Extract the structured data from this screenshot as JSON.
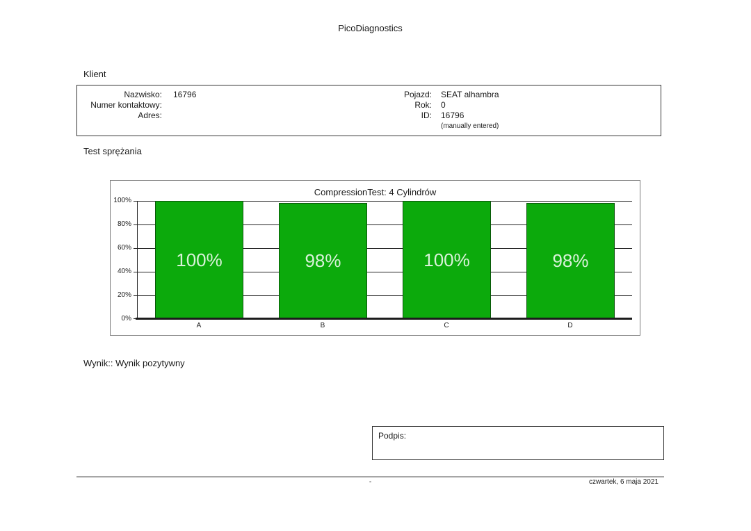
{
  "page": {
    "title": "PicoDiagnostics",
    "footer": {
      "dash": "-",
      "date": "czwartek, 6 maja 2021"
    }
  },
  "client": {
    "heading": "Klient",
    "left_fields": [
      {
        "label": "Nazwisko:",
        "value": "16796"
      },
      {
        "label": "Numer kontaktowy:",
        "value": ""
      },
      {
        "label": "Adres:",
        "value": ""
      }
    ],
    "right_fields": [
      {
        "label": "Pojazd:",
        "value": "SEAT alhambra"
      },
      {
        "label": "Rok:",
        "value": "0"
      },
      {
        "label": "ID:",
        "value": "16796"
      }
    ],
    "note": "(manually entered)"
  },
  "test": {
    "heading": "Test sprężania",
    "result": "Wynik:: Wynik pozytywny"
  },
  "chart_data": {
    "type": "bar",
    "title": "CompressionTest: 4 Cylindrów",
    "categories": [
      "A",
      "B",
      "C",
      "D"
    ],
    "values": [
      100,
      98,
      100,
      98
    ],
    "value_labels": [
      "100%",
      "98%",
      "100%",
      "98%"
    ],
    "ylim": [
      0,
      100
    ],
    "yticks": [
      0,
      20,
      40,
      60,
      80,
      100
    ],
    "ytick_labels": [
      "0%",
      "20%",
      "40%",
      "60%",
      "80%",
      "100%"
    ],
    "grid": true,
    "legend": false,
    "bar_color": "#0caa0c",
    "bar_border_color": "#0a550a",
    "bar_label_color": "#d9f2d9"
  },
  "signature": {
    "label": "Podpis:"
  }
}
